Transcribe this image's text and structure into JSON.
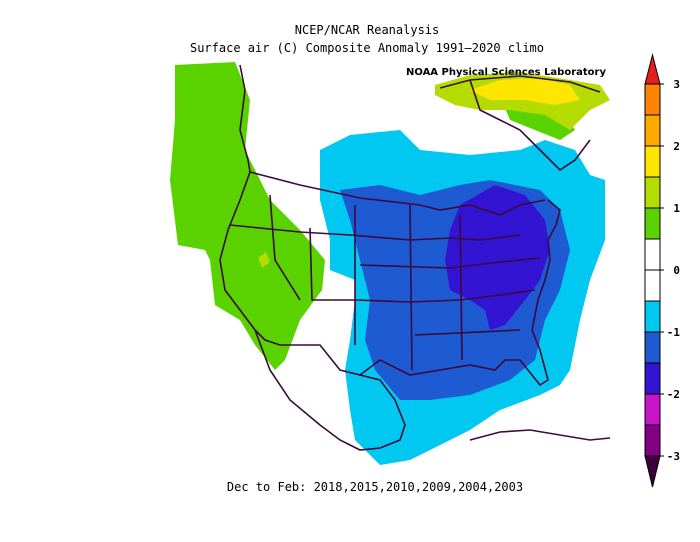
{
  "map": {
    "title": "NCEP/NCAR Reanalysis",
    "subtitle": "Surface air (C) Composite Anomaly 1991–2020 climo",
    "credit": "NOAA Physical Sciences Laboratory",
    "caption": "Dec to Feb: 2018,2015,2010,2009,2004,2003"
  },
  "colorbar": {
    "ticks": [
      3,
      2,
      1,
      0,
      -1,
      -2,
      -3
    ],
    "over_color": "#e61e1e",
    "under_color": "#3c003c",
    "segments": [
      {
        "from": 2.5,
        "to": 3,
        "color": "#ff8200"
      },
      {
        "from": 2,
        "to": 2.5,
        "color": "#ffaa00"
      },
      {
        "from": 1.5,
        "to": 2,
        "color": "#ffe600"
      },
      {
        "from": 1,
        "to": 1.5,
        "color": "#b4dc00"
      },
      {
        "from": 0.5,
        "to": 1,
        "color": "#5ad200"
      },
      {
        "from": 0,
        "to": 0.5,
        "color": "#ffffff"
      },
      {
        "from": -0.5,
        "to": 0,
        "color": "#ffffff"
      },
      {
        "from": -1,
        "to": -0.5,
        "color": "#00c8f0"
      },
      {
        "from": -1.5,
        "to": -1,
        "color": "#1e5ad2"
      },
      {
        "from": -2,
        "to": -1.5,
        "color": "#3214d2"
      },
      {
        "from": -2.5,
        "to": -2,
        "color": "#c814c8"
      },
      {
        "from": -3,
        "to": -2.5,
        "color": "#820082"
      }
    ]
  }
}
